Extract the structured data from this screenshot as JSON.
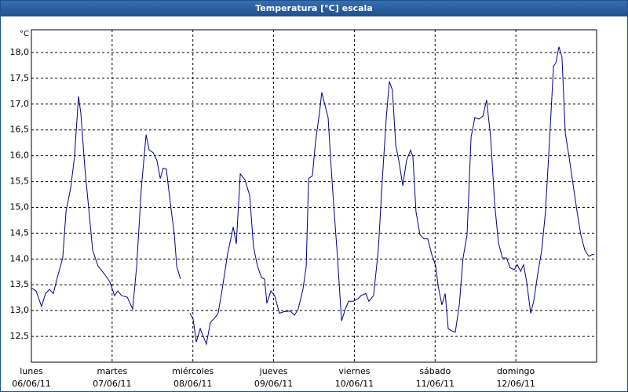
{
  "chart_data": {
    "type": "line",
    "title": "Temperatura [°C] escala",
    "y_unit": "°C",
    "xlim": [
      0,
      168
    ],
    "ylim": [
      12.0,
      18.44
    ],
    "xticks": [
      {
        "value": 0,
        "label": "lunes",
        "sublabel": "06/06/11"
      },
      {
        "value": 24,
        "label": "martes",
        "sublabel": "07/06/11"
      },
      {
        "value": 48,
        "label": "miércoles",
        "sublabel": "08/06/11"
      },
      {
        "value": 72,
        "label": "jueves",
        "sublabel": "09/06/11"
      },
      {
        "value": 96,
        "label": "viernes",
        "sublabel": "10/06/11"
      },
      {
        "value": 120,
        "label": "sábado",
        "sublabel": "11/06/11"
      },
      {
        "value": 144,
        "label": "domingo",
        "sublabel": "12/06/11"
      }
    ],
    "yticks": [
      {
        "value": 12.5,
        "label": "12,5"
      },
      {
        "value": 13,
        "label": "13,0"
      },
      {
        "value": 13.5,
        "label": "13,5"
      },
      {
        "value": 14,
        "label": "14,0"
      },
      {
        "value": 14.5,
        "label": "14,5"
      },
      {
        "value": 15,
        "label": "15,0"
      },
      {
        "value": 15.5,
        "label": "15,5"
      },
      {
        "value": 16,
        "label": "16,0"
      },
      {
        "value": 16.5,
        "label": "16,5"
      },
      {
        "value": 17,
        "label": "17,0"
      },
      {
        "value": 17.5,
        "label": "17,5"
      },
      {
        "value": 18,
        "label": "18,0"
      }
    ],
    "grid": true,
    "series": [
      {
        "color": "#00008b",
        "x": [
          0,
          1.4,
          3,
          4.2,
          5.4,
          6.5,
          7.7,
          9.3,
          10.3,
          11.7,
          12.8,
          14,
          14.7,
          15.9,
          17,
          18.2,
          19.8,
          21.7,
          23.3,
          24.7,
          25.7,
          26.8,
          28.5,
          30.1,
          31.3,
          32.7,
          34.1,
          35,
          36.2,
          37.3,
          38.3,
          39.2,
          40.1,
          41.3,
          42.5,
          43.2,
          44.3,
          45,
          47.1,
          48.1,
          49,
          50.2,
          52,
          53.2,
          54.4,
          55.5,
          56.7,
          58.3,
          60,
          60.9,
          62.1,
          63.5,
          64.9,
          66,
          67.2,
          68.4,
          69.3,
          70,
          71.2,
          72.3,
          73.7,
          75.1,
          77,
          78.2,
          79.3,
          80.7,
          81.7,
          82.4,
          83.5,
          84.5,
          85.6,
          86.3,
          87.3,
          88.2,
          88.9,
          89.8,
          91,
          92.2,
          93.3,
          94.3,
          95.7,
          97.1,
          98,
          99.4,
          100.3,
          101.7,
          103.1,
          104.3,
          105.5,
          106.4,
          107.3,
          108.3,
          109.2,
          110.4,
          111.5,
          112.7,
          113.4,
          114.3,
          115.5,
          116.7,
          117.8,
          119,
          120.2,
          120.9,
          122,
          123,
          123.9,
          124.8,
          126,
          127.2,
          128.3,
          129.5,
          130.7,
          131.8,
          133,
          134.2,
          135.3,
          136.5,
          137.7,
          138.8,
          140,
          141.2,
          142.3,
          143.5,
          144.4,
          145.4,
          146.3,
          147.2,
          148.4,
          149.3,
          150.5,
          151.7,
          152.8,
          154,
          155.2,
          155.9,
          156.8,
          157.7,
          158.7,
          159.8,
          161,
          162.2,
          163.3,
          164.5,
          165.7,
          166.8,
          167.3
        ],
        "values": [
          13.44,
          13.38,
          13.08,
          13.33,
          13.41,
          13.33,
          13.64,
          14.02,
          14.92,
          15.38,
          15.98,
          17.15,
          16.82,
          15.76,
          15.0,
          14.17,
          13.86,
          13.71,
          13.56,
          13.29,
          13.38,
          13.29,
          13.26,
          13.03,
          13.86,
          15.38,
          16.41,
          16.11,
          16.06,
          15.91,
          15.56,
          15.76,
          15.74,
          15.08,
          14.47,
          13.86,
          13.61,
          null,
          12.95,
          12.83,
          12.39,
          12.65,
          12.35,
          12.77,
          12.85,
          12.95,
          13.41,
          14.09,
          14.62,
          14.29,
          15.65,
          15.53,
          15.23,
          14.24,
          13.86,
          13.64,
          13.61,
          13.14,
          13.38,
          13.29,
          12.95,
          12.98,
          12.99,
          12.91,
          13.03,
          13.41,
          13.86,
          15.56,
          15.61,
          16.29,
          16.82,
          17.23,
          16.97,
          16.74,
          15.98,
          15.08,
          14.02,
          12.8,
          13.03,
          13.18,
          13.18,
          13.23,
          13.29,
          13.33,
          13.18,
          13.29,
          14.17,
          15.53,
          16.74,
          17.44,
          17.27,
          16.21,
          15.91,
          15.42,
          15.91,
          16.11,
          15.98,
          14.92,
          14.47,
          14.39,
          14.39,
          14.09,
          13.86,
          13.48,
          13.11,
          13.33,
          12.65,
          12.61,
          12.58,
          13.11,
          14.02,
          14.47,
          16.36,
          16.74,
          16.71,
          16.77,
          17.08,
          16.36,
          15.08,
          14.32,
          14.02,
          14.02,
          13.83,
          13.79,
          13.89,
          13.76,
          13.89,
          13.56,
          12.95,
          13.18,
          13.71,
          14.17,
          14.92,
          16.29,
          17.73,
          17.8,
          18.11,
          17.91,
          16.44,
          15.98,
          15.45,
          14.92,
          14.47,
          14.17,
          14.05,
          14.09,
          14.08
        ]
      }
    ]
  }
}
